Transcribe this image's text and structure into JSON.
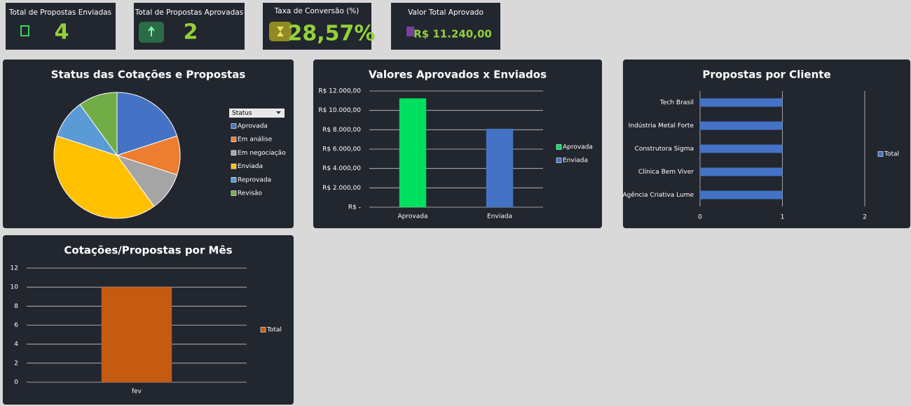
{
  "kpis": [
    {
      "label": "Total de Propostas Enviadas",
      "value": "4"
    },
    {
      "label": "Total de Propostas Aprovadas",
      "value": "2"
    },
    {
      "label": "Taxa de Conversão (%)",
      "value": "28,57%"
    },
    {
      "label": "Valor Total Aprovado",
      "value": "R$ 11.240,00"
    }
  ],
  "chart_data": [
    {
      "type": "pie",
      "title": "Status das Cotações e Propostas",
      "legend_title": "Status",
      "categories": [
        "Aprovada",
        "Em análise",
        "Em negociação",
        "Enviada",
        "Reprovada",
        "Revisão"
      ],
      "values": [
        2,
        1,
        1,
        4,
        1,
        1
      ],
      "colors": [
        "#4472c4",
        "#ed7d31",
        "#a5a5a5",
        "#ffc000",
        "#5b9bd5",
        "#70ad47"
      ],
      "legend": "right"
    },
    {
      "type": "bar",
      "title": "Valores Aprovados x Enviados",
      "categories": [
        "Aprovada",
        "Enviada"
      ],
      "values": [
        11240,
        8100
      ],
      "colors": [
        "#00e060",
        "#4472c4"
      ],
      "ylim": [
        0,
        12000
      ],
      "yticks": [
        {
          "value": 0,
          "label": "R$ -"
        },
        {
          "value": 2000,
          "label": "R$ 2.000,00"
        },
        {
          "value": 4000,
          "label": "R$ 4.000,00"
        },
        {
          "value": 6000,
          "label": "R$ 6.000,00"
        },
        {
          "value": 8000,
          "label": "R$ 8.000,00"
        },
        {
          "value": 10000,
          "label": "R$ 10.000,00"
        },
        {
          "value": 12000,
          "label": "R$ 12.000,00"
        }
      ],
      "grid": true,
      "legend": "right"
    },
    {
      "type": "hbar",
      "title": "Propostas por Cliente",
      "categories": [
        "Tech Brasil",
        "Indústria Metal Forte",
        "Construtora Sigma",
        "Clínica Bem Viver",
        "Agência Criativa Lume"
      ],
      "series": [
        {
          "name": "Total",
          "color": "#4472c4",
          "values": [
            1,
            1,
            1,
            1,
            1
          ]
        }
      ],
      "xlim": [
        0,
        2
      ],
      "xticks": [
        0,
        1,
        2
      ],
      "grid": true,
      "legend": "right"
    },
    {
      "type": "bar",
      "title": "Cotações/Propostas por Mês",
      "categories": [
        "fev"
      ],
      "series": [
        {
          "name": "Total",
          "color": "#c55a11",
          "values": [
            10
          ]
        }
      ],
      "ylim": [
        0,
        12
      ],
      "yticks": [
        0,
        2,
        4,
        6,
        8,
        10,
        12
      ],
      "grid": true,
      "legend": "right"
    }
  ]
}
